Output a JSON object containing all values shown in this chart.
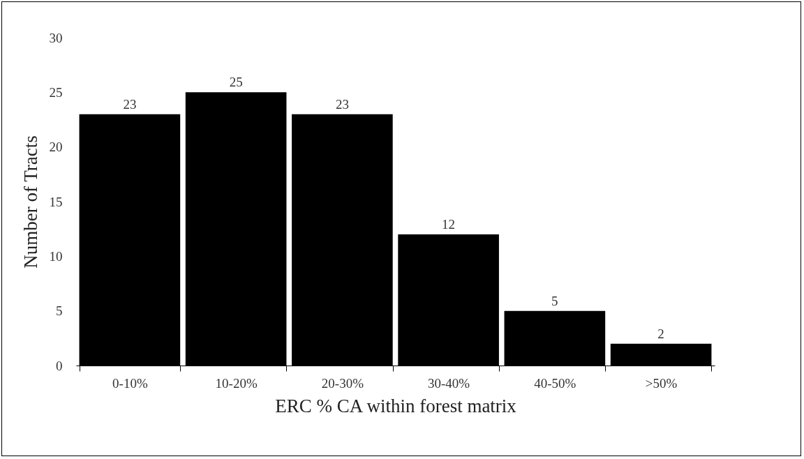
{
  "chart_data": {
    "type": "bar",
    "xlabel": "ERC % CA within forest matrix",
    "ylabel": "Number of Tracts",
    "categories": [
      "0-10%",
      "10-20%",
      "20-30%",
      "30-40%",
      "40-50%",
      ">50%"
    ],
    "values": [
      23,
      25,
      23,
      12,
      5,
      2
    ],
    "color": "#000000",
    "ylim": [
      0,
      30
    ],
    "yticks": [
      0,
      5,
      10,
      15,
      20,
      25,
      30
    ],
    "grid": false,
    "data_labels": true
  }
}
